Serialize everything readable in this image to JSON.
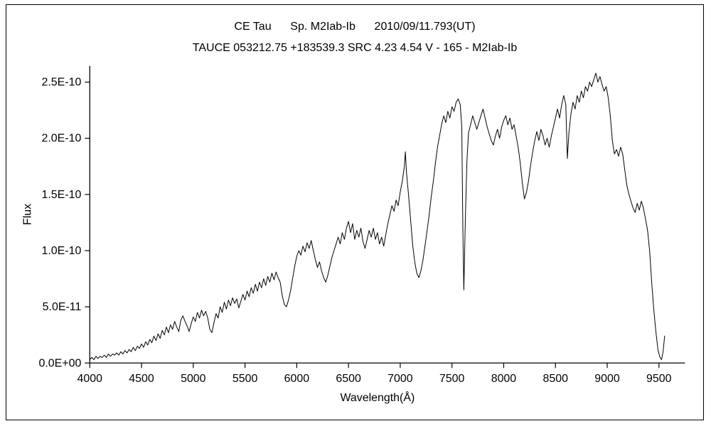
{
  "chart_data": {
    "type": "line",
    "title": "CE Tau      Sp. M2Iab-Ib      2010/09/11.793(UT)",
    "subtitle": "TAUCE 053212.75 +183539.3 SRC 4.23 4.54 V - 165 - M2Iab-Ib",
    "xlabel": "Wavelength(Å)",
    "ylabel": "Flux",
    "line_color": "#000000",
    "background_color": "#ffffff",
    "legend": "none",
    "grid": false,
    "xlim": [
      4000,
      9560
    ],
    "ylim": [
      0,
      2.6e-10
    ],
    "flux_scale_note": "point flux values are in units of 1e-10 (matching y-axis labels)",
    "x_ticks": [
      4000,
      4500,
      5000,
      5500,
      6000,
      6500,
      7000,
      7500,
      8000,
      8500,
      9000,
      9500
    ],
    "y_ticks": [
      {
        "value": 0.0,
        "label": "0.0E+00"
      },
      {
        "value": 0.5,
        "label": "5.0E-11"
      },
      {
        "value": 1.0,
        "label": "1.0E-10"
      },
      {
        "value": 1.5,
        "label": "1.5E-10"
      },
      {
        "value": 2.0,
        "label": "2.0E-10"
      },
      {
        "value": 2.5,
        "label": "2.5E-10"
      }
    ],
    "series_name": "CE Tau spectrum",
    "points": [
      [
        4000,
        0.03
      ],
      [
        4020,
        0.05
      ],
      [
        4040,
        0.03
      ],
      [
        4060,
        0.06
      ],
      [
        4080,
        0.04
      ],
      [
        4100,
        0.06
      ],
      [
        4120,
        0.05
      ],
      [
        4140,
        0.07
      ],
      [
        4160,
        0.05
      ],
      [
        4180,
        0.08
      ],
      [
        4200,
        0.06
      ],
      [
        4220,
        0.08
      ],
      [
        4240,
        0.07
      ],
      [
        4260,
        0.09
      ],
      [
        4280,
        0.07
      ],
      [
        4300,
        0.1
      ],
      [
        4320,
        0.08
      ],
      [
        4340,
        0.11
      ],
      [
        4360,
        0.09
      ],
      [
        4380,
        0.12
      ],
      [
        4400,
        0.1
      ],
      [
        4420,
        0.14
      ],
      [
        4440,
        0.11
      ],
      [
        4460,
        0.15
      ],
      [
        4480,
        0.13
      ],
      [
        4500,
        0.17
      ],
      [
        4520,
        0.14
      ],
      [
        4540,
        0.19
      ],
      [
        4560,
        0.16
      ],
      [
        4580,
        0.21
      ],
      [
        4600,
        0.18
      ],
      [
        4620,
        0.24
      ],
      [
        4640,
        0.2
      ],
      [
        4660,
        0.26
      ],
      [
        4680,
        0.22
      ],
      [
        4700,
        0.29
      ],
      [
        4720,
        0.25
      ],
      [
        4740,
        0.32
      ],
      [
        4760,
        0.27
      ],
      [
        4780,
        0.34
      ],
      [
        4800,
        0.3
      ],
      [
        4820,
        0.37
      ],
      [
        4840,
        0.32
      ],
      [
        4860,
        0.28
      ],
      [
        4880,
        0.38
      ],
      [
        4900,
        0.42
      ],
      [
        4920,
        0.37
      ],
      [
        4940,
        0.33
      ],
      [
        4960,
        0.28
      ],
      [
        4980,
        0.35
      ],
      [
        5000,
        0.41
      ],
      [
        5020,
        0.37
      ],
      [
        5040,
        0.45
      ],
      [
        5060,
        0.4
      ],
      [
        5080,
        0.47
      ],
      [
        5100,
        0.42
      ],
      [
        5120,
        0.46
      ],
      [
        5140,
        0.4
      ],
      [
        5160,
        0.3
      ],
      [
        5180,
        0.27
      ],
      [
        5200,
        0.36
      ],
      [
        5220,
        0.44
      ],
      [
        5240,
        0.4
      ],
      [
        5260,
        0.5
      ],
      [
        5280,
        0.45
      ],
      [
        5300,
        0.54
      ],
      [
        5320,
        0.48
      ],
      [
        5340,
        0.56
      ],
      [
        5360,
        0.51
      ],
      [
        5380,
        0.58
      ],
      [
        5400,
        0.53
      ],
      [
        5420,
        0.57
      ],
      [
        5440,
        0.49
      ],
      [
        5460,
        0.55
      ],
      [
        5480,
        0.61
      ],
      [
        5500,
        0.56
      ],
      [
        5520,
        0.64
      ],
      [
        5540,
        0.59
      ],
      [
        5560,
        0.67
      ],
      [
        5580,
        0.62
      ],
      [
        5600,
        0.7
      ],
      [
        5620,
        0.64
      ],
      [
        5640,
        0.72
      ],
      [
        5660,
        0.67
      ],
      [
        5680,
        0.75
      ],
      [
        5700,
        0.69
      ],
      [
        5720,
        0.77
      ],
      [
        5740,
        0.72
      ],
      [
        5760,
        0.8
      ],
      [
        5780,
        0.74
      ],
      [
        5800,
        0.81
      ],
      [
        5820,
        0.76
      ],
      [
        5840,
        0.72
      ],
      [
        5860,
        0.6
      ],
      [
        5880,
        0.52
      ],
      [
        5900,
        0.5
      ],
      [
        5920,
        0.56
      ],
      [
        5940,
        0.64
      ],
      [
        5960,
        0.75
      ],
      [
        5980,
        0.86
      ],
      [
        6000,
        0.95
      ],
      [
        6020,
        1.0
      ],
      [
        6040,
        0.96
      ],
      [
        6060,
        1.04
      ],
      [
        6080,
        0.99
      ],
      [
        6100,
        1.07
      ],
      [
        6120,
        1.02
      ],
      [
        6140,
        1.09
      ],
      [
        6160,
        1.0
      ],
      [
        6180,
        0.92
      ],
      [
        6200,
        0.85
      ],
      [
        6220,
        0.9
      ],
      [
        6240,
        0.82
      ],
      [
        6260,
        0.76
      ],
      [
        6280,
        0.72
      ],
      [
        6300,
        0.78
      ],
      [
        6320,
        0.86
      ],
      [
        6340,
        0.94
      ],
      [
        6360,
        1.0
      ],
      [
        6380,
        1.06
      ],
      [
        6400,
        1.12
      ],
      [
        6420,
        1.06
      ],
      [
        6440,
        1.16
      ],
      [
        6460,
        1.1
      ],
      [
        6480,
        1.2
      ],
      [
        6500,
        1.26
      ],
      [
        6520,
        1.16
      ],
      [
        6540,
        1.24
      ],
      [
        6560,
        1.1
      ],
      [
        6580,
        1.18
      ],
      [
        6600,
        1.12
      ],
      [
        6620,
        1.2
      ],
      [
        6640,
        1.08
      ],
      [
        6660,
        1.02
      ],
      [
        6680,
        1.1
      ],
      [
        6700,
        1.18
      ],
      [
        6720,
        1.12
      ],
      [
        6740,
        1.2
      ],
      [
        6760,
        1.1
      ],
      [
        6780,
        1.16
      ],
      [
        6800,
        1.06
      ],
      [
        6820,
        1.12
      ],
      [
        6840,
        1.04
      ],
      [
        6860,
        1.14
      ],
      [
        6880,
        1.24
      ],
      [
        6900,
        1.32
      ],
      [
        6920,
        1.4
      ],
      [
        6940,
        1.35
      ],
      [
        6960,
        1.45
      ],
      [
        6980,
        1.4
      ],
      [
        7000,
        1.52
      ],
      [
        7020,
        1.62
      ],
      [
        7040,
        1.75
      ],
      [
        7050,
        1.88
      ],
      [
        7060,
        1.7
      ],
      [
        7080,
        1.5
      ],
      [
        7100,
        1.28
      ],
      [
        7120,
        1.05
      ],
      [
        7140,
        0.9
      ],
      [
        7160,
        0.8
      ],
      [
        7180,
        0.76
      ],
      [
        7200,
        0.82
      ],
      [
        7220,
        0.92
      ],
      [
        7240,
        1.05
      ],
      [
        7260,
        1.18
      ],
      [
        7280,
        1.32
      ],
      [
        7300,
        1.48
      ],
      [
        7320,
        1.62
      ],
      [
        7340,
        1.78
      ],
      [
        7360,
        1.92
      ],
      [
        7380,
        2.02
      ],
      [
        7400,
        2.12
      ],
      [
        7420,
        2.2
      ],
      [
        7440,
        2.14
      ],
      [
        7460,
        2.24
      ],
      [
        7480,
        2.18
      ],
      [
        7500,
        2.28
      ],
      [
        7520,
        2.24
      ],
      [
        7540,
        2.32
      ],
      [
        7560,
        2.35
      ],
      [
        7580,
        2.3
      ],
      [
        7595,
        2.1
      ],
      [
        7605,
        1.2
      ],
      [
        7615,
        0.65
      ],
      [
        7630,
        1.3
      ],
      [
        7645,
        1.8
      ],
      [
        7660,
        2.05
      ],
      [
        7680,
        2.12
      ],
      [
        7700,
        2.2
      ],
      [
        7720,
        2.14
      ],
      [
        7740,
        2.08
      ],
      [
        7760,
        2.14
      ],
      [
        7780,
        2.2
      ],
      [
        7800,
        2.26
      ],
      [
        7820,
        2.18
      ],
      [
        7840,
        2.1
      ],
      [
        7860,
        2.04
      ],
      [
        7880,
        1.98
      ],
      [
        7900,
        1.94
      ],
      [
        7920,
        2.02
      ],
      [
        7940,
        2.08
      ],
      [
        7960,
        2.0
      ],
      [
        7980,
        2.1
      ],
      [
        8000,
        2.16
      ],
      [
        8020,
        2.2
      ],
      [
        8040,
        2.12
      ],
      [
        8060,
        2.18
      ],
      [
        8080,
        2.08
      ],
      [
        8100,
        2.12
      ],
      [
        8120,
        2.02
      ],
      [
        8140,
        1.92
      ],
      [
        8160,
        1.78
      ],
      [
        8180,
        1.6
      ],
      [
        8200,
        1.46
      ],
      [
        8220,
        1.52
      ],
      [
        8240,
        1.62
      ],
      [
        8260,
        1.76
      ],
      [
        8280,
        1.88
      ],
      [
        8300,
        1.98
      ],
      [
        8320,
        2.06
      ],
      [
        8340,
        1.98
      ],
      [
        8360,
        2.08
      ],
      [
        8380,
        2.02
      ],
      [
        8400,
        1.94
      ],
      [
        8420,
        2.0
      ],
      [
        8440,
        1.92
      ],
      [
        8460,
        2.02
      ],
      [
        8480,
        2.1
      ],
      [
        8500,
        2.18
      ],
      [
        8520,
        2.26
      ],
      [
        8540,
        2.18
      ],
      [
        8560,
        2.3
      ],
      [
        8580,
        2.38
      ],
      [
        8600,
        2.3
      ],
      [
        8615,
        1.82
      ],
      [
        8630,
        2.05
      ],
      [
        8650,
        2.22
      ],
      [
        8670,
        2.32
      ],
      [
        8690,
        2.26
      ],
      [
        8710,
        2.38
      ],
      [
        8730,
        2.32
      ],
      [
        8750,
        2.42
      ],
      [
        8770,
        2.36
      ],
      [
        8790,
        2.46
      ],
      [
        8810,
        2.42
      ],
      [
        8830,
        2.5
      ],
      [
        8850,
        2.46
      ],
      [
        8870,
        2.52
      ],
      [
        8890,
        2.58
      ],
      [
        8910,
        2.5
      ],
      [
        8930,
        2.55
      ],
      [
        8950,
        2.48
      ],
      [
        8970,
        2.42
      ],
      [
        8990,
        2.46
      ],
      [
        9010,
        2.36
      ],
      [
        9030,
        2.2
      ],
      [
        9050,
        1.98
      ],
      [
        9070,
        1.86
      ],
      [
        9090,
        1.9
      ],
      [
        9110,
        1.84
      ],
      [
        9130,
        1.92
      ],
      [
        9150,
        1.86
      ],
      [
        9170,
        1.72
      ],
      [
        9190,
        1.58
      ],
      [
        9210,
        1.5
      ],
      [
        9230,
        1.44
      ],
      [
        9250,
        1.38
      ],
      [
        9270,
        1.34
      ],
      [
        9290,
        1.42
      ],
      [
        9310,
        1.36
      ],
      [
        9330,
        1.44
      ],
      [
        9350,
        1.38
      ],
      [
        9370,
        1.28
      ],
      [
        9390,
        1.18
      ],
      [
        9410,
        1.0
      ],
      [
        9430,
        0.72
      ],
      [
        9450,
        0.48
      ],
      [
        9470,
        0.28
      ],
      [
        9490,
        0.12
      ],
      [
        9510,
        0.05
      ],
      [
        9525,
        0.03
      ],
      [
        9540,
        0.1
      ],
      [
        9555,
        0.24
      ]
    ]
  }
}
